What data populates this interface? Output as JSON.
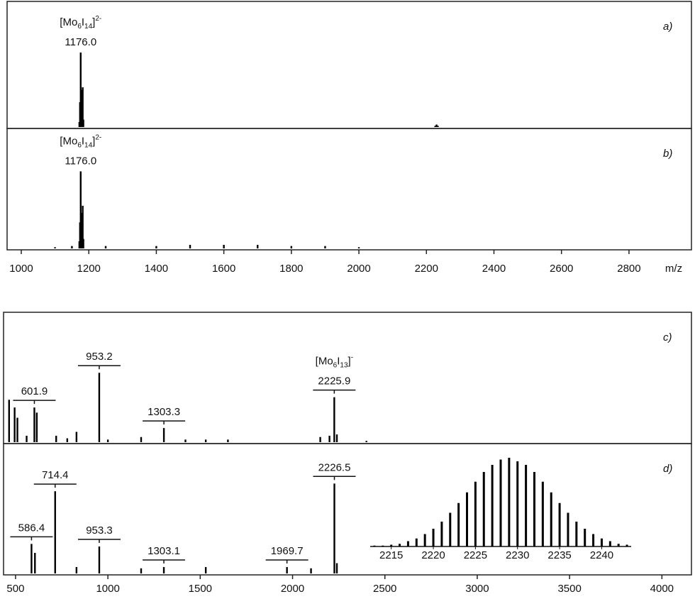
{
  "chart_data": [
    {
      "type": "spectrum",
      "color": "#000",
      "label_style": "plain",
      "xlim": [
        958,
        2985
      ],
      "xticks": [
        1000,
        1200,
        1400,
        1600,
        1800,
        2000,
        2200,
        2400,
        2600,
        2800
      ],
      "xlabel": "m/z",
      "panels": [
        {
          "label": "a)",
          "ylim": [
            0,
            100
          ],
          "x": [
            1172,
            1174,
            1176,
            1178,
            1180,
            1182,
            1184,
            2226,
            2230,
            2234
          ],
          "values": [
            4,
            20,
            60,
            30,
            12,
            32,
            6,
            1,
            2,
            1
          ],
          "annotations": [
            {
              "x": 1176.0,
              "label": "1176.0",
              "ion": {
                "parts": [
                  "[Mo",
                  "6",
                  "I",
                  "14",
                  "]",
                  "2-"
                ],
                "styles": [
                  "normal",
                  "sub",
                  "normal",
                  "sub",
                  "normal",
                  "sup"
                ]
              }
            }
          ]
        },
        {
          "label": "b)",
          "ylim": [
            0,
            100
          ],
          "x": [
            1100,
            1150,
            1172,
            1174,
            1176,
            1178,
            1180,
            1182,
            1184,
            1250,
            1400,
            1500,
            1600,
            1700,
            1800,
            1900,
            2000
          ],
          "values": [
            1,
            2,
            6,
            22,
            65,
            30,
            14,
            36,
            8,
            2,
            2,
            3,
            3,
            3,
            2,
            2,
            1
          ],
          "annotations": [
            {
              "x": 1176.0,
              "label": "1176.0",
              "ion": {
                "parts": [
                  "[Mo",
                  "6",
                  "I",
                  "14",
                  "]",
                  "2-"
                ],
                "styles": [
                  "normal",
                  "sub",
                  "normal",
                  "sub",
                  "normal",
                  "sup"
                ]
              }
            }
          ]
        }
      ]
    },
    {
      "type": "spectrum",
      "color": "#000",
      "label_style": "underline",
      "xlim": [
        435,
        4160
      ],
      "xticks": [
        500,
        1000,
        1500,
        2000,
        2500,
        3000,
        3500,
        4000
      ],
      "panels": [
        {
          "label": "c)",
          "ylim": [
            0,
            100
          ],
          "x": [
            465,
            495,
            510,
            560,
            601.9,
            615,
            720,
            780,
            830,
            953.2,
            1000,
            1180,
            1303.3,
            1420,
            1530,
            1650,
            2150,
            2200,
            2225.9,
            2240,
            2400
          ],
          "values": [
            33,
            27,
            19,
            5,
            27,
            23,
            5,
            3,
            8,
            54,
            2,
            4,
            11,
            2,
            2,
            2,
            4,
            5,
            35,
            6,
            1
          ],
          "annotations": [
            {
              "x": 601.9,
              "label": "601.9"
            },
            {
              "x": 953.2,
              "label": "953.2"
            },
            {
              "x": 1303.3,
              "label": "1303.3"
            },
            {
              "x": 2225.9,
              "label": "2225.9",
              "ion": {
                "parts": [
                  "[Mo",
                  "6",
                  "I",
                  "13",
                  "]",
                  "-"
                ],
                "styles": [
                  "normal",
                  "sub",
                  "normal",
                  "sub",
                  "normal",
                  "sup"
                ]
              }
            }
          ]
        },
        {
          "label": "d)",
          "ylim": [
            0,
            100
          ],
          "x": [
            586.4,
            605,
            714.4,
            830,
            953.3,
            1180,
            1303.1,
            1530,
            1969.7,
            2100,
            2226.5,
            2240
          ],
          "values": [
            23,
            16,
            64,
            5,
            21,
            4,
            5,
            5,
            5,
            4,
            70,
            8
          ],
          "annotations": [
            {
              "x": 586.4,
              "label": "586.4"
            },
            {
              "x": 714.4,
              "label": "714.4"
            },
            {
              "x": 953.3,
              "label": "953.3"
            },
            {
              "x": 1303.1,
              "label": "1303.1"
            },
            {
              "x": 1969.7,
              "label": "1969.7"
            },
            {
              "x": 2226.5,
              "label": "2226.5"
            }
          ],
          "inset": {
            "type": "spectrum",
            "ylim": [
              0,
              100
            ],
            "xlim": [
              2212.5,
              2243.5
            ],
            "xticks": [
              2215,
              2220,
              2225,
              2230,
              2235,
              2240
            ],
            "x": [
              2213,
              2214,
              2215,
              2216,
              2217,
              2218,
              2219,
              2220,
              2221,
              2222,
              2223,
              2224,
              2225,
              2226,
              2227,
              2228,
              2229,
              2230,
              2231,
              2232,
              2233,
              2234,
              2235,
              2236,
              2237,
              2238,
              2239,
              2240,
              2241,
              2242,
              2243
            ],
            "values": [
              1,
              1,
              2,
              3,
              6,
              9,
              14,
              20,
              28,
              38,
              49,
              61,
              73,
              84,
              92,
              98,
              100,
              96,
              92,
              84,
              73,
              61,
              49,
              38,
              28,
              20,
              14,
              9,
              6,
              3,
              2
            ]
          }
        }
      ]
    }
  ]
}
